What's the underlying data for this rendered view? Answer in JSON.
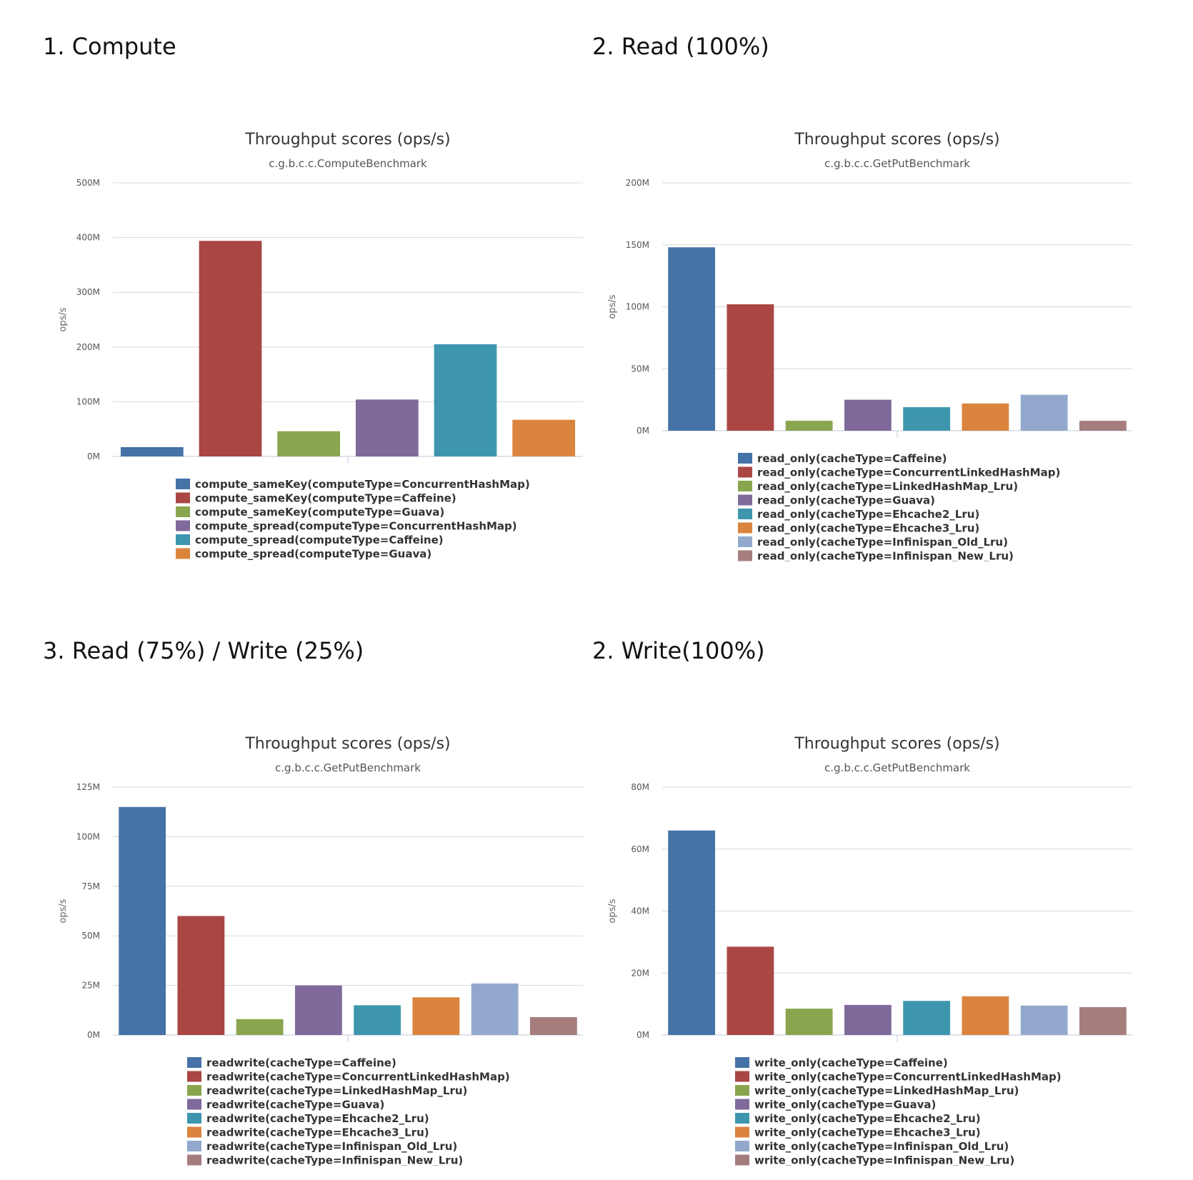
{
  "panels": [
    {
      "heading": "1. Compute",
      "chart_data": {
        "type": "bar",
        "title": "Throughput scores (ops/s)",
        "subtitle": "c.g.b.c.c.ComputeBenchmark",
        "ylabel": "ops/s",
        "ylim": [
          0,
          500
        ],
        "yticks": [
          0,
          100,
          200,
          300,
          400,
          500
        ],
        "ytick_labels": [
          "0M",
          "100M",
          "200M",
          "300M",
          "400M",
          "500M"
        ],
        "grid": true,
        "legend_position": "bottom",
        "series": [
          {
            "name": "compute_sameKey(computeType=ConcurrentHashMap)",
            "value": 17,
            "color": "#4572a7"
          },
          {
            "name": "compute_sameKey(computeType=Caffeine)",
            "value": 394,
            "color": "#aa4643"
          },
          {
            "name": "compute_sameKey(computeType=Guava)",
            "value": 46,
            "color": "#89a54e"
          },
          {
            "name": "compute_spread(computeType=ConcurrentHashMap)",
            "value": 104,
            "color": "#80699b"
          },
          {
            "name": "compute_spread(computeType=Caffeine)",
            "value": 205,
            "color": "#3d96ae"
          },
          {
            "name": "compute_spread(computeType=Guava)",
            "value": 67,
            "color": "#db843d"
          }
        ]
      }
    },
    {
      "heading": "2. Read (100%)",
      "chart_data": {
        "type": "bar",
        "title": "Throughput scores (ops/s)",
        "subtitle": "c.g.b.c.c.GetPutBenchmark",
        "ylabel": "ops/s",
        "ylim": [
          0,
          200
        ],
        "yticks": [
          0,
          50,
          100,
          150,
          200
        ],
        "ytick_labels": [
          "0M",
          "50M",
          "100M",
          "150M",
          "200M"
        ],
        "grid": true,
        "legend_position": "bottom",
        "series": [
          {
            "name": "read_only(cacheType=Caffeine)",
            "value": 148,
            "color": "#4572a7"
          },
          {
            "name": "read_only(cacheType=ConcurrentLinkedHashMap)",
            "value": 102,
            "color": "#aa4643"
          },
          {
            "name": "read_only(cacheType=LinkedHashMap_Lru)",
            "value": 8,
            "color": "#89a54e"
          },
          {
            "name": "read_only(cacheType=Guava)",
            "value": 25,
            "color": "#80699b"
          },
          {
            "name": "read_only(cacheType=Ehcache2_Lru)",
            "value": 19,
            "color": "#3d96ae"
          },
          {
            "name": "read_only(cacheType=Ehcache3_Lru)",
            "value": 22,
            "color": "#db843d"
          },
          {
            "name": "read_only(cacheType=Infinispan_Old_Lru)",
            "value": 29,
            "color": "#92a8cd"
          },
          {
            "name": "read_only(cacheType=Infinispan_New_Lru)",
            "value": 8,
            "color": "#a47d7c"
          }
        ]
      }
    },
    {
      "heading": "3. Read (75%) / Write (25%)",
      "chart_data": {
        "type": "bar",
        "title": "Throughput scores (ops/s)",
        "subtitle": "c.g.b.c.c.GetPutBenchmark",
        "ylabel": "ops/s",
        "ylim": [
          0,
          125
        ],
        "yticks": [
          0,
          25,
          50,
          75,
          100,
          125
        ],
        "ytick_labels": [
          "0M",
          "25M",
          "50M",
          "75M",
          "100M",
          "125M"
        ],
        "grid": true,
        "legend_position": "bottom",
        "series": [
          {
            "name": "readwrite(cacheType=Caffeine)",
            "value": 115,
            "color": "#4572a7"
          },
          {
            "name": "readwrite(cacheType=ConcurrentLinkedHashMap)",
            "value": 60,
            "color": "#aa4643"
          },
          {
            "name": "readwrite(cacheType=LinkedHashMap_Lru)",
            "value": 8,
            "color": "#89a54e"
          },
          {
            "name": "readwrite(cacheType=Guava)",
            "value": 25,
            "color": "#80699b"
          },
          {
            "name": "readwrite(cacheType=Ehcache2_Lru)",
            "value": 15,
            "color": "#3d96ae"
          },
          {
            "name": "readwrite(cacheType=Ehcache3_Lru)",
            "value": 19,
            "color": "#db843d"
          },
          {
            "name": "readwrite(cacheType=Infinispan_Old_Lru)",
            "value": 26,
            "color": "#92a8cd"
          },
          {
            "name": "readwrite(cacheType=Infinispan_New_Lru)",
            "value": 9,
            "color": "#a47d7c"
          }
        ]
      }
    },
    {
      "heading": "2. Write(100%)",
      "chart_data": {
        "type": "bar",
        "title": "Throughput scores (ops/s)",
        "subtitle": "c.g.b.c.c.GetPutBenchmark",
        "ylabel": "ops/s",
        "ylim": [
          0,
          80
        ],
        "yticks": [
          0,
          20,
          40,
          60,
          80
        ],
        "ytick_labels": [
          "0M",
          "20M",
          "40M",
          "60M",
          "80M"
        ],
        "grid": true,
        "legend_position": "bottom",
        "series": [
          {
            "name": "write_only(cacheType=Caffeine)",
            "value": 66,
            "color": "#4572a7"
          },
          {
            "name": "write_only(cacheType=ConcurrentLinkedHashMap)",
            "value": 28.5,
            "color": "#aa4643"
          },
          {
            "name": "write_only(cacheType=LinkedHashMap_Lru)",
            "value": 8.5,
            "color": "#89a54e"
          },
          {
            "name": "write_only(cacheType=Guava)",
            "value": 9.7,
            "color": "#80699b"
          },
          {
            "name": "write_only(cacheType=Ehcache2_Lru)",
            "value": 11,
            "color": "#3d96ae"
          },
          {
            "name": "write_only(cacheType=Ehcache3_Lru)",
            "value": 12.5,
            "color": "#db843d"
          },
          {
            "name": "write_only(cacheType=Infinispan_Old_Lru)",
            "value": 9.5,
            "color": "#92a8cd"
          },
          {
            "name": "write_only(cacheType=Infinispan_New_Lru)",
            "value": 9,
            "color": "#a47d7c"
          }
        ]
      }
    }
  ]
}
